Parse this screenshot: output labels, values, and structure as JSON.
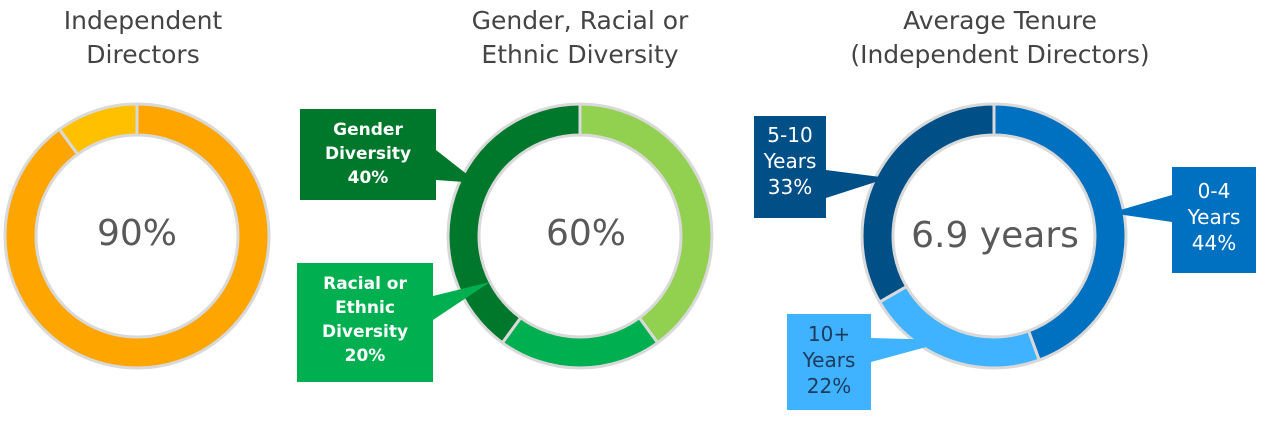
{
  "chart_data": [
    {
      "type": "pie",
      "title_lines": [
        "Independent",
        "Directors"
      ],
      "center_label": "90%",
      "slices": [
        {
          "label": "Independent",
          "value": 90,
          "color": "#FFA500"
        },
        {
          "label": "",
          "value": 10,
          "color": "#FFC000"
        }
      ]
    },
    {
      "type": "pie",
      "title_lines": [
        "Gender, Racial or",
        "Ethnic Diversity"
      ],
      "center_label": "60%",
      "slices": [
        {
          "label": "",
          "value": 40,
          "color": "#92D050"
        },
        {
          "label": "Racial or Ethnic Diversity",
          "value": 20,
          "color": "#00B050"
        },
        {
          "label": "Gender Diversity",
          "value": 40,
          "color": "#00782C"
        }
      ],
      "callouts": [
        {
          "lines": [
            "Gender",
            "Diversity",
            "40%"
          ],
          "color": "#00782C"
        },
        {
          "lines": [
            "Racial or",
            "Ethnic",
            "Diversity",
            "20%"
          ],
          "color": "#00B050"
        }
      ]
    },
    {
      "type": "pie",
      "title_lines": [
        "Average Tenure",
        "(Independent Directors)"
      ],
      "center_label": "6.9 years",
      "slices": [
        {
          "label": "0-4 Years",
          "value": 44,
          "color": "#0070C0"
        },
        {
          "label": "10+ Years",
          "value": 22,
          "color": "#3FB3FF"
        },
        {
          "label": "5-10 Years",
          "value": 33,
          "color": "#004F87"
        }
      ],
      "callouts": [
        {
          "lines": [
            "5-10",
            "Years",
            "33%"
          ],
          "color": "#004F87"
        },
        {
          "lines": [
            "0-4",
            "Years",
            "44%"
          ],
          "color": "#0070C0"
        },
        {
          "lines": [
            "10+",
            "Years",
            "22%"
          ],
          "color": "#3FB3FF"
        }
      ]
    }
  ]
}
